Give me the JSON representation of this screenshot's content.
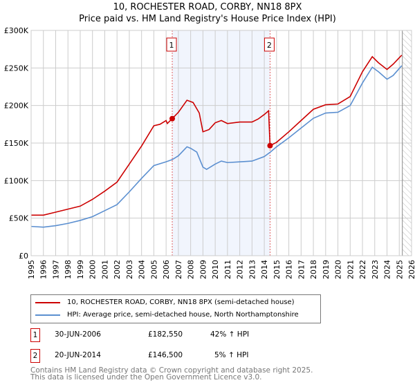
{
  "chart_data": {
    "type": "line",
    "title": "10, ROCHESTER ROAD, CORBY, NN18 8PX",
    "subtitle": "Price paid vs. HM Land Registry's House Price Index (HPI)",
    "xlim": [
      1995,
      2026
    ],
    "ylim": [
      0,
      300000
    ],
    "y_ticks": [
      0,
      50000,
      100000,
      150000,
      200000,
      250000,
      300000
    ],
    "y_tick_labels": [
      "£0",
      "£50K",
      "£100K",
      "£150K",
      "£200K",
      "£250K",
      "£300K"
    ],
    "x_ticks": [
      1995,
      1996,
      1997,
      1998,
      1999,
      2000,
      2001,
      2002,
      2003,
      2004,
      2005,
      2006,
      2007,
      2008,
      2009,
      2010,
      2011,
      2012,
      2013,
      2014,
      2015,
      2016,
      2017,
      2018,
      2019,
      2020,
      2021,
      2022,
      2023,
      2024,
      2025,
      2026
    ],
    "grid": true,
    "series": [
      {
        "name": "10, ROCHESTER ROAD, CORBY, NN18 8PX (semi-detached house)",
        "color": "#cc0000",
        "x": [
          1995,
          1996,
          1997,
          1998,
          1999,
          2000,
          2001,
          2002,
          2003,
          2004,
          2005,
          2005.5,
          2006,
          2006.1,
          2006.5,
          2007,
          2007.7,
          2008.2,
          2008.7,
          2009,
          2009.5,
          2010,
          2010.5,
          2011,
          2012,
          2013,
          2013.5,
          2014,
          2014.35,
          2014.47,
          2015,
          2016,
          2017,
          2018,
          2019,
          2020,
          2021,
          2022,
          2022.8,
          2023.3,
          2024,
          2024.5,
          2025.2
        ],
        "y": [
          54000,
          54000,
          58000,
          62000,
          66000,
          75000,
          86000,
          98000,
          122000,
          146000,
          173000,
          175000,
          180000,
          176000,
          182550,
          191000,
          207000,
          204000,
          190000,
          165000,
          168000,
          177000,
          180000,
          176000,
          178000,
          178000,
          182000,
          188000,
          193000,
          146500,
          151000,
          165000,
          180000,
          195000,
          201000,
          202000,
          212000,
          245000,
          265000,
          257000,
          248000,
          255000,
          267000
        ]
      },
      {
        "name": "HPI: Average price, semi-detached house, North Northamptonshire",
        "color": "#5b8fd0",
        "x": [
          1995,
          1996,
          1997,
          1998,
          1999,
          2000,
          2001,
          2002,
          2003,
          2004,
          2005,
          2006,
          2006.5,
          2007,
          2007.7,
          2008,
          2008.5,
          2009,
          2009.3,
          2010,
          2010.5,
          2011,
          2012,
          2013,
          2014,
          2014.5,
          2015,
          2016,
          2017,
          2018,
          2019,
          2020,
          2021,
          2022,
          2022.8,
          2023.3,
          2024,
          2024.5,
          2025.2
        ],
        "y": [
          39000,
          38000,
          40000,
          43000,
          47000,
          52000,
          60000,
          68000,
          85000,
          103000,
          120000,
          125000,
          128000,
          133000,
          145000,
          143000,
          138000,
          118000,
          115000,
          122000,
          126000,
          124000,
          125000,
          126000,
          132000,
          138000,
          145000,
          157000,
          170000,
          183000,
          190000,
          191000,
          200000,
          230000,
          251000,
          245000,
          235000,
          240000,
          253000
        ]
      }
    ],
    "sales": [
      {
        "label": "1",
        "x": 2006.5,
        "price": 182550,
        "date": "30-JUN-2006",
        "price_text": "£182,550",
        "hpi": "42% ↑ HPI"
      },
      {
        "label": "2",
        "x": 2014.47,
        "price": 146500,
        "date": "20-JUN-2014",
        "price_text": "£146,500",
        "hpi": "5% ↑ HPI"
      }
    ],
    "forecast_start": 2025.25,
    "legend_position": "bottom"
  },
  "footer": {
    "line1": "Contains HM Land Registry data © Crown copyright and database right 2025.",
    "line2": "This data is licensed under the Open Government Licence v3.0."
  }
}
